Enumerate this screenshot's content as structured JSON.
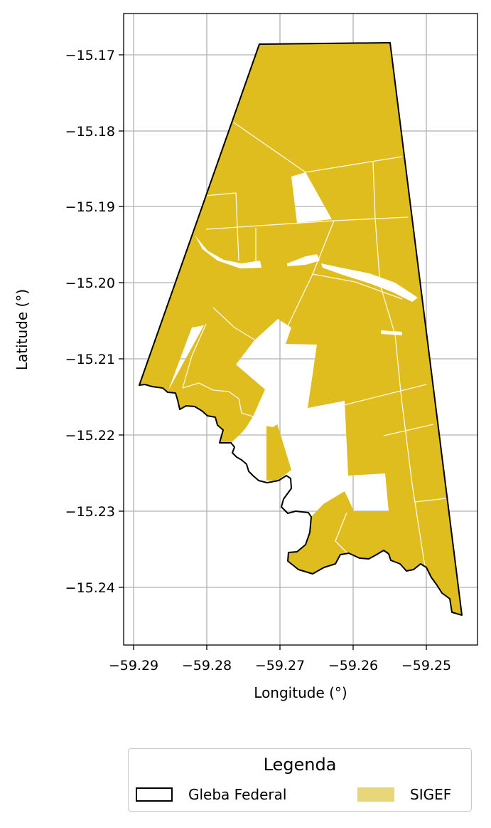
{
  "map": {
    "xlabel": "Longitude (°)",
    "ylabel": "Latitude (°)",
    "x_ticks": [
      "−59.29",
      "−59.28",
      "−59.27",
      "−59.26",
      "−59.25"
    ],
    "y_ticks": [
      "−15.17",
      "−15.18",
      "−15.19",
      "−15.20",
      "−15.21",
      "−15.22",
      "−15.23",
      "−15.24"
    ],
    "grid": true,
    "fill_color": "#dfbd1f",
    "outline_color": "#000000"
  },
  "legend": {
    "title": "Legenda",
    "items": [
      {
        "label": "Gleba Federal",
        "style": "outline"
      },
      {
        "label": "SIGEF",
        "style": "fill",
        "color": "#e8d77a"
      }
    ]
  }
}
